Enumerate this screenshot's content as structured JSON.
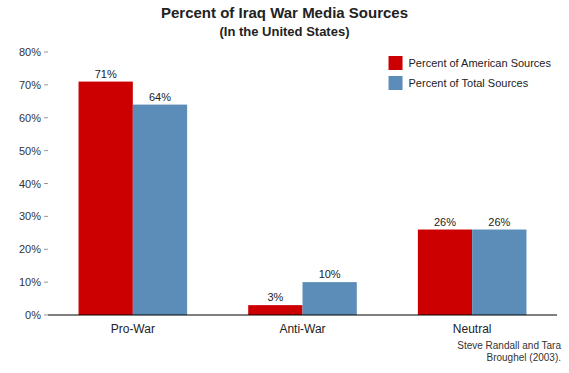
{
  "chart_data": {
    "type": "bar",
    "title": "Percent of Iraq War Media Sources",
    "subtitle": "(In the United States)",
    "categories": [
      "Pro-War",
      "Anti-War",
      "Neutral"
    ],
    "series": [
      {
        "name": "Percent of American Sources",
        "color": "#cc0000",
        "values": [
          71,
          3,
          26
        ],
        "value_labels": [
          "71%",
          "3%",
          "26%"
        ]
      },
      {
        "name": "Percent of Total Sources",
        "color": "#5b8db8",
        "values": [
          64,
          10,
          26
        ],
        "value_labels": [
          "64%",
          "10%",
          "26%"
        ]
      }
    ],
    "ylim": [
      0,
      80
    ],
    "yticks": [
      {
        "value": 0,
        "label": "0%"
      },
      {
        "value": 10,
        "label": "10%"
      },
      {
        "value": 20,
        "label": "20%"
      },
      {
        "value": 30,
        "label": "30%"
      },
      {
        "value": 40,
        "label": "40%"
      },
      {
        "value": 50,
        "label": "50%"
      },
      {
        "value": 60,
        "label": "60%"
      },
      {
        "value": 70,
        "label": "70%"
      },
      {
        "value": 80,
        "label": "80%"
      }
    ],
    "annotations": [
      "Steve Randall and Tara\nBroughel (2003)."
    ],
    "legend": "upper right",
    "data_labels": true,
    "grid": false
  }
}
